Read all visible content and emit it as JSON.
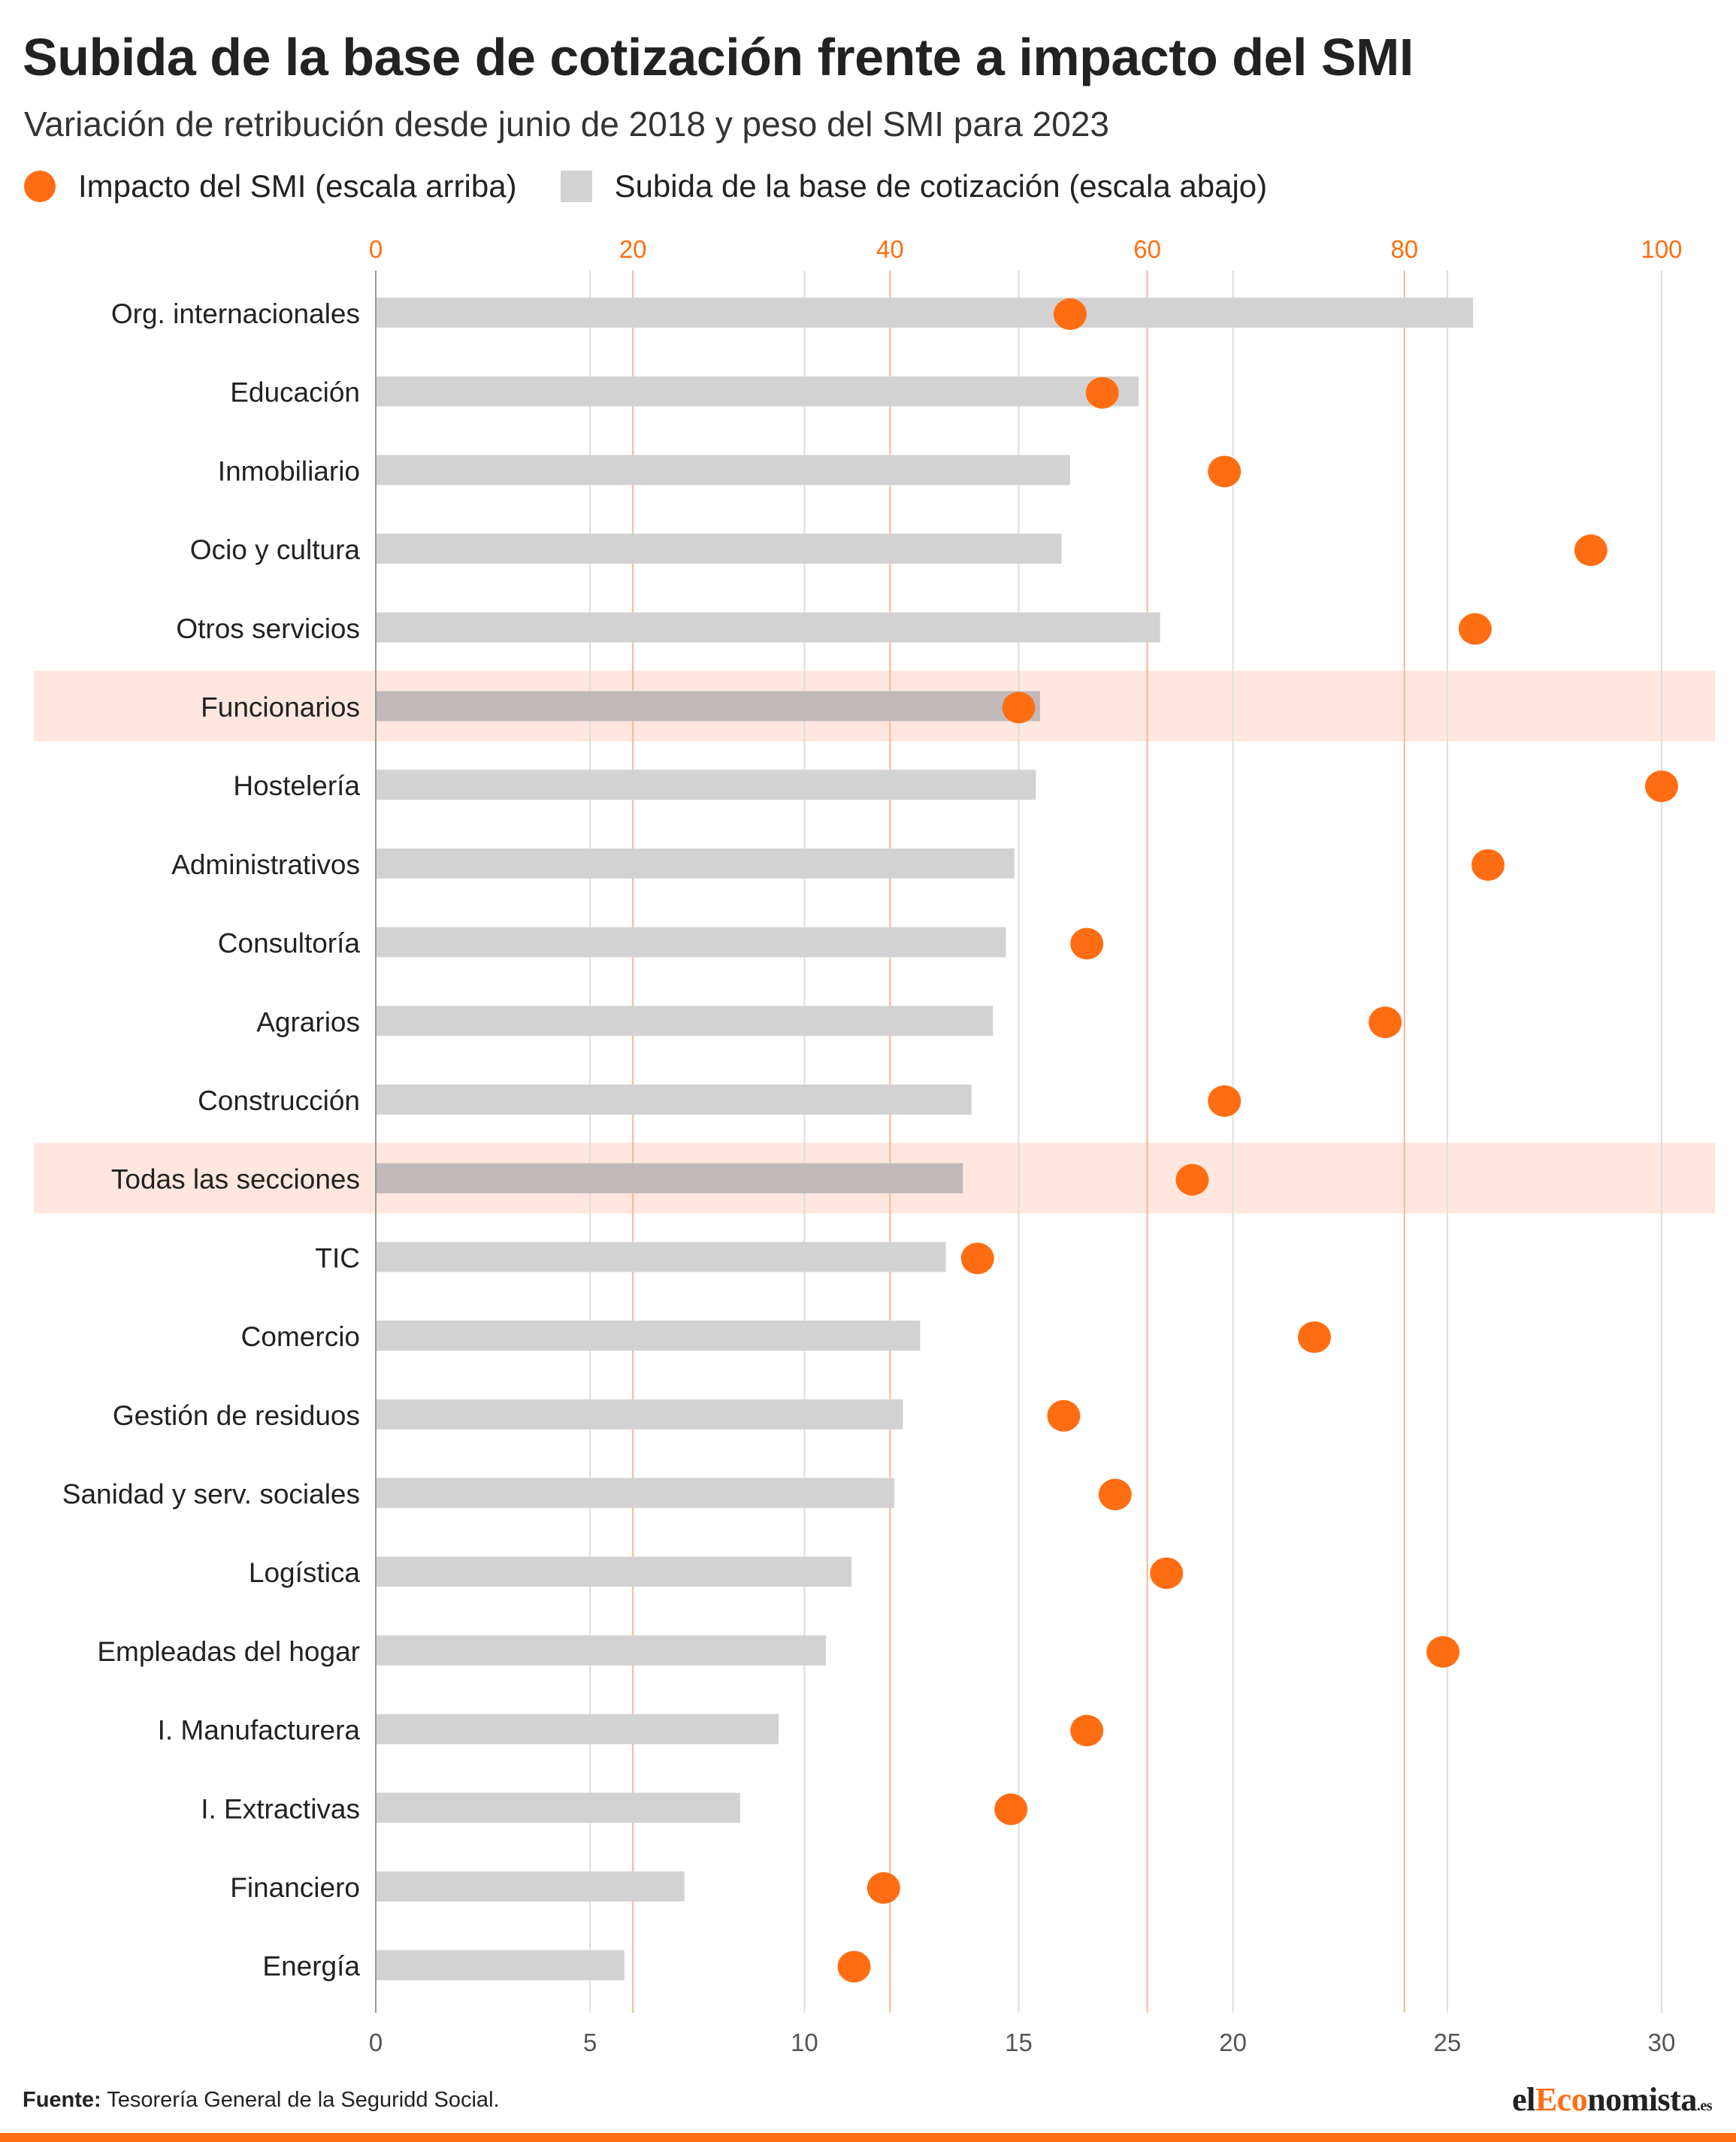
{
  "title": "Subida de la base de cotización frente a impacto del SMI",
  "subtitle": "Variación de retribución desde junio de 2018 y peso del SMI para 2023",
  "legend": {
    "smi": "Impacto del SMI (escala arriba)",
    "base": "Subida de la base de cotización (escala abajo)"
  },
  "source": {
    "label": "Fuente:",
    "text": "Tesorería General de la Seguridd Social."
  },
  "brand": {
    "pre": "el",
    "accent": "Eco",
    "post": "nomista",
    "tld": ".es"
  },
  "colors": {
    "accent": "#ff6d13",
    "bar": "#d2d2d2",
    "bar_highlight": "#c1b9b9",
    "highlight_band": "#ffe7df",
    "top_axis_text": "#ff6d13",
    "bottom_axis_text": "#555555"
  },
  "chart_data": {
    "type": "bar",
    "orientation": "horizontal",
    "categories": [
      "Org. internacionales",
      "Educación",
      "Inmobiliario",
      "Ocio y cultura",
      "Otros servicios",
      "Funcionarios",
      "Hostelería",
      "Administrativos",
      "Consultoría",
      "Agrarios",
      "Construcción",
      "Todas las secciones",
      "TIC",
      "Comercio",
      "Gestión de residuos",
      "Sanidad y serv. sociales",
      "Logística",
      "Empleadas del hogar",
      "I. Manufacturera",
      "I. Extractivas",
      "Financiero",
      "Energía"
    ],
    "highlighted": [
      "Funcionarios",
      "Todas las secciones"
    ],
    "series": [
      {
        "name": "Subida de la base de cotización (escala abajo)",
        "type": "bar",
        "axis": "bottom",
        "values": [
          25.6,
          17.8,
          16.2,
          16.0,
          18.3,
          15.5,
          15.4,
          14.9,
          14.7,
          14.4,
          13.9,
          13.7,
          13.3,
          12.7,
          12.3,
          12.1,
          11.1,
          10.5,
          9.4,
          8.5,
          7.2,
          5.8
        ]
      },
      {
        "name": "Impacto del SMI (escala arriba)",
        "type": "scatter",
        "axis": "top",
        "values": [
          54,
          56.5,
          66,
          94.5,
          85.5,
          50,
          100,
          86.5,
          55.3,
          78.5,
          66,
          63.5,
          46.8,
          73,
          53.5,
          57.5,
          61.5,
          83,
          55.3,
          49.4,
          39.5,
          37.2
        ]
      }
    ],
    "x_bottom": {
      "range": [
        0,
        30
      ],
      "ticks": [
        0,
        5,
        10,
        15,
        20,
        25,
        30
      ]
    },
    "x_top": {
      "range": [
        0,
        100
      ],
      "ticks": [
        0,
        20,
        40,
        60,
        80,
        100
      ]
    },
    "grid": true
  }
}
